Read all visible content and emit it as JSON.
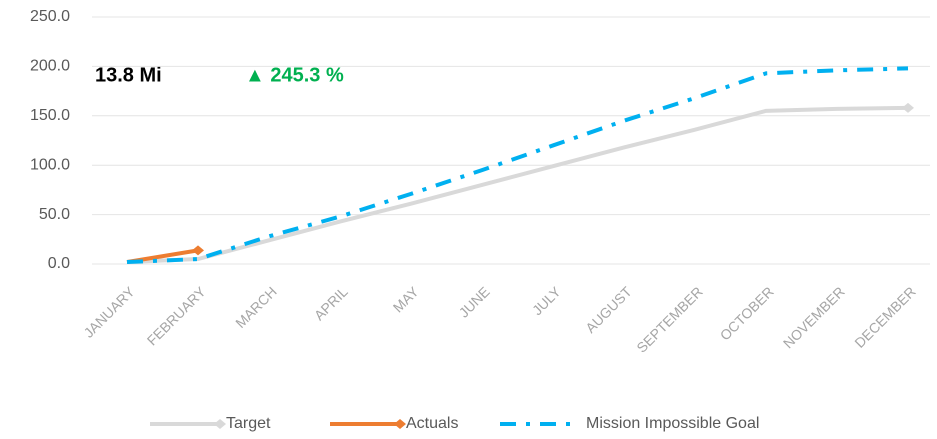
{
  "chart_data": {
    "type": "line",
    "categories": [
      "JANUARY",
      "FEBRUARY",
      "MARCH",
      "APRIL",
      "MAY",
      "JUNE",
      "JULY",
      "AUGUST",
      "SEPTEMBER",
      "OCTOBER",
      "NOVEMBER",
      "DECEMBER"
    ],
    "series": [
      {
        "name": "Target",
        "color": "#d9d9d9",
        "values": [
          2,
          5,
          24,
          43,
          61,
          80,
          99,
          118,
          136,
          155,
          157,
          158
        ]
      },
      {
        "name": "Actuals",
        "color": "#ed7d31",
        "values": [
          2,
          13.8,
          null,
          null,
          null,
          null,
          null,
          null,
          null,
          null,
          null,
          null
        ]
      },
      {
        "name": "Mission Impossible Goal",
        "color": "#00b0f0",
        "values": [
          2,
          5,
          28,
          48,
          71,
          95,
          120,
          145,
          168,
          193,
          196,
          198
        ]
      }
    ],
    "annotations": [
      "13.8 Mi",
      "▲ 245.3 %"
    ],
    "ylim": [
      0,
      250
    ],
    "yticks": [
      {
        "value": 0,
        "label": "0.0"
      },
      {
        "value": 50,
        "label": "50.0"
      },
      {
        "value": 100,
        "label": "100.0"
      },
      {
        "value": 150,
        "label": "150.0"
      },
      {
        "value": 200,
        "label": "200.0"
      },
      {
        "value": 250,
        "label": "250.0"
      }
    ],
    "grid": true,
    "legend": "bottom"
  }
}
